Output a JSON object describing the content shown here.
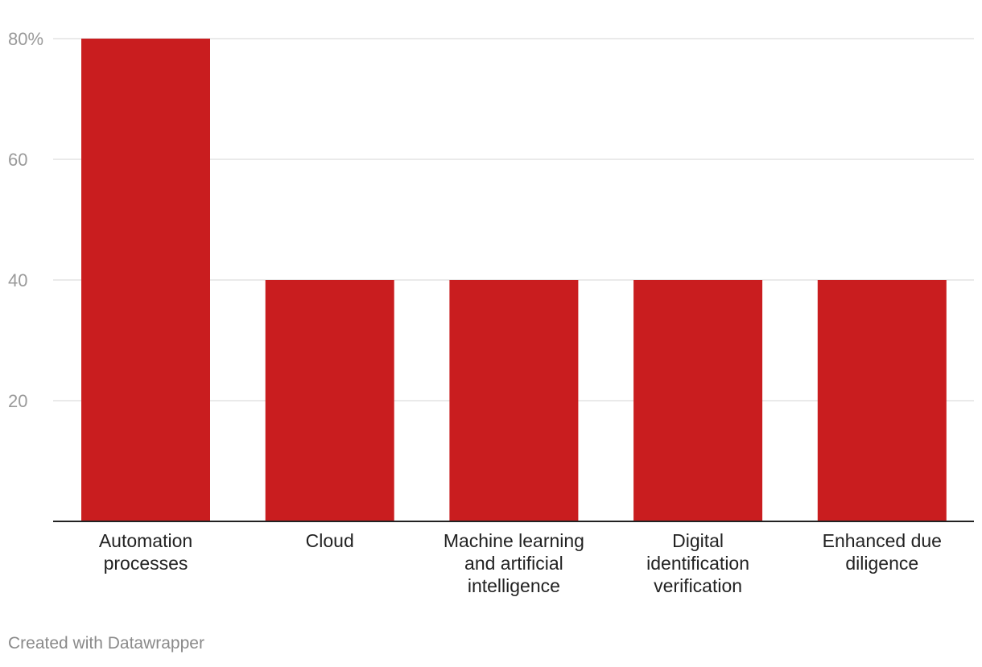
{
  "chart_data": {
    "type": "bar",
    "categories": [
      [
        "Automation",
        "processes"
      ],
      [
        "Cloud"
      ],
      [
        "Machine learning",
        "and artificial",
        "intelligence"
      ],
      [
        "Digital",
        "identification",
        "verification"
      ],
      [
        "Enhanced due",
        "diligence"
      ]
    ],
    "values": [
      80,
      40,
      40,
      40,
      40
    ],
    "ylim": [
      0,
      80
    ],
    "yticks": [
      20,
      40,
      60,
      80
    ],
    "ytick_labels": [
      "20",
      "40",
      "60",
      "80%"
    ],
    "bar_color": "#c91d1f",
    "title": "",
    "xlabel": "",
    "ylabel": ""
  },
  "footer": {
    "credit": "Created with Datawrapper"
  }
}
